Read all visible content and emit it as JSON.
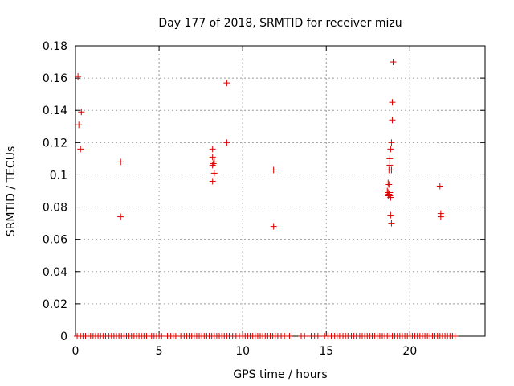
{
  "chart_data": {
    "type": "scatter",
    "title": "Day 177 of 2018, SRMTID for receiver mizu",
    "xlabel": "GPS time / hours",
    "ylabel": "SRMTID / TECUs",
    "xlim": [
      0,
      24.5
    ],
    "ylim": [
      0,
      0.18
    ],
    "xticks": [
      0,
      5,
      10,
      15,
      20
    ],
    "xtick_labels": [
      "0",
      "5",
      "10",
      "15",
      "20"
    ],
    "yticks": [
      0,
      0.02,
      0.04,
      0.06,
      0.08,
      0.1,
      0.12,
      0.14,
      0.16,
      0.18
    ],
    "ytick_labels": [
      "0",
      "0.02",
      "0.04",
      "0.06",
      "0.08",
      "0.1",
      "0.12",
      "0.14",
      "0.16",
      "0.18"
    ],
    "grid": true,
    "marker": "+",
    "colors": {
      "points": "#dd0000",
      "grid": "#9a9a9a",
      "axis": "#000000"
    },
    "series": [
      {
        "name": "SRMTID",
        "points": [
          [
            0.15,
            0.161
          ],
          [
            0.2,
            0.131
          ],
          [
            0.3,
            0.116
          ],
          [
            0.35,
            0.139
          ],
          [
            2.7,
            0.108
          ],
          [
            2.7,
            0.074
          ],
          [
            8.2,
            0.116
          ],
          [
            8.2,
            0.111
          ],
          [
            8.25,
            0.107
          ],
          [
            8.3,
            0.108
          ],
          [
            8.2,
            0.106
          ],
          [
            8.3,
            0.101
          ],
          [
            8.2,
            0.096
          ],
          [
            9.05,
            0.157
          ],
          [
            9.05,
            0.12
          ],
          [
            11.85,
            0.103
          ],
          [
            11.85,
            0.068
          ],
          [
            18.7,
            0.095
          ],
          [
            18.75,
            0.094
          ],
          [
            18.65,
            0.09
          ],
          [
            18.7,
            0.089
          ],
          [
            18.75,
            0.088
          ],
          [
            18.8,
            0.087
          ],
          [
            18.85,
            0.086
          ],
          [
            18.7,
            0.087
          ],
          [
            18.8,
            0.089
          ],
          [
            18.75,
            0.103
          ],
          [
            18.8,
            0.106
          ],
          [
            18.8,
            0.11
          ],
          [
            18.85,
            0.116
          ],
          [
            18.9,
            0.12
          ],
          [
            18.9,
            0.103
          ],
          [
            18.95,
            0.134
          ],
          [
            18.95,
            0.145
          ],
          [
            19.0,
            0.17
          ],
          [
            18.85,
            0.075
          ],
          [
            18.9,
            0.07
          ],
          [
            21.8,
            0.093
          ],
          [
            21.85,
            0.076
          ],
          [
            21.85,
            0.074
          ]
        ],
        "zero_points_x": [
          0.1,
          0.3,
          0.45,
          0.6,
          0.75,
          0.9,
          1.05,
          1.2,
          1.35,
          1.5,
          1.65,
          1.8,
          2.0,
          2.15,
          2.3,
          2.45,
          2.6,
          2.75,
          2.9,
          3.05,
          3.2,
          3.35,
          3.5,
          3.65,
          3.8,
          3.95,
          4.1,
          4.25,
          4.4,
          4.55,
          4.7,
          4.85,
          5.0,
          5.15,
          5.5,
          5.7,
          5.85,
          6.0,
          6.3,
          6.5,
          6.65,
          6.8,
          6.95,
          7.1,
          7.25,
          7.4,
          7.55,
          7.7,
          7.85,
          8.0,
          8.15,
          8.3,
          8.45,
          8.6,
          8.75,
          8.9,
          9.05,
          9.2,
          9.4,
          9.6,
          9.8,
          10.0,
          10.15,
          10.3,
          10.45,
          10.6,
          10.75,
          10.9,
          11.05,
          11.2,
          11.35,
          11.5,
          11.65,
          11.8,
          11.95,
          12.1,
          12.3,
          12.5,
          12.8,
          13.5,
          13.7,
          14.1,
          14.3,
          14.5,
          14.9,
          15.1,
          15.3,
          15.5,
          15.65,
          15.8,
          16.0,
          16.15,
          16.3,
          16.5,
          16.65,
          16.8,
          17.0,
          17.15,
          17.3,
          17.45,
          17.6,
          17.75,
          17.9,
          18.05,
          18.2,
          18.35,
          18.5,
          18.65,
          18.8,
          18.95,
          19.1,
          19.25,
          19.4,
          19.55,
          19.7,
          19.85,
          20.0,
          20.15,
          20.3,
          20.45,
          20.6,
          20.75,
          20.9,
          21.05,
          21.2,
          21.35,
          21.5,
          21.65,
          21.8,
          21.95,
          22.1,
          22.25,
          22.4,
          22.55,
          22.7
        ]
      }
    ]
  }
}
